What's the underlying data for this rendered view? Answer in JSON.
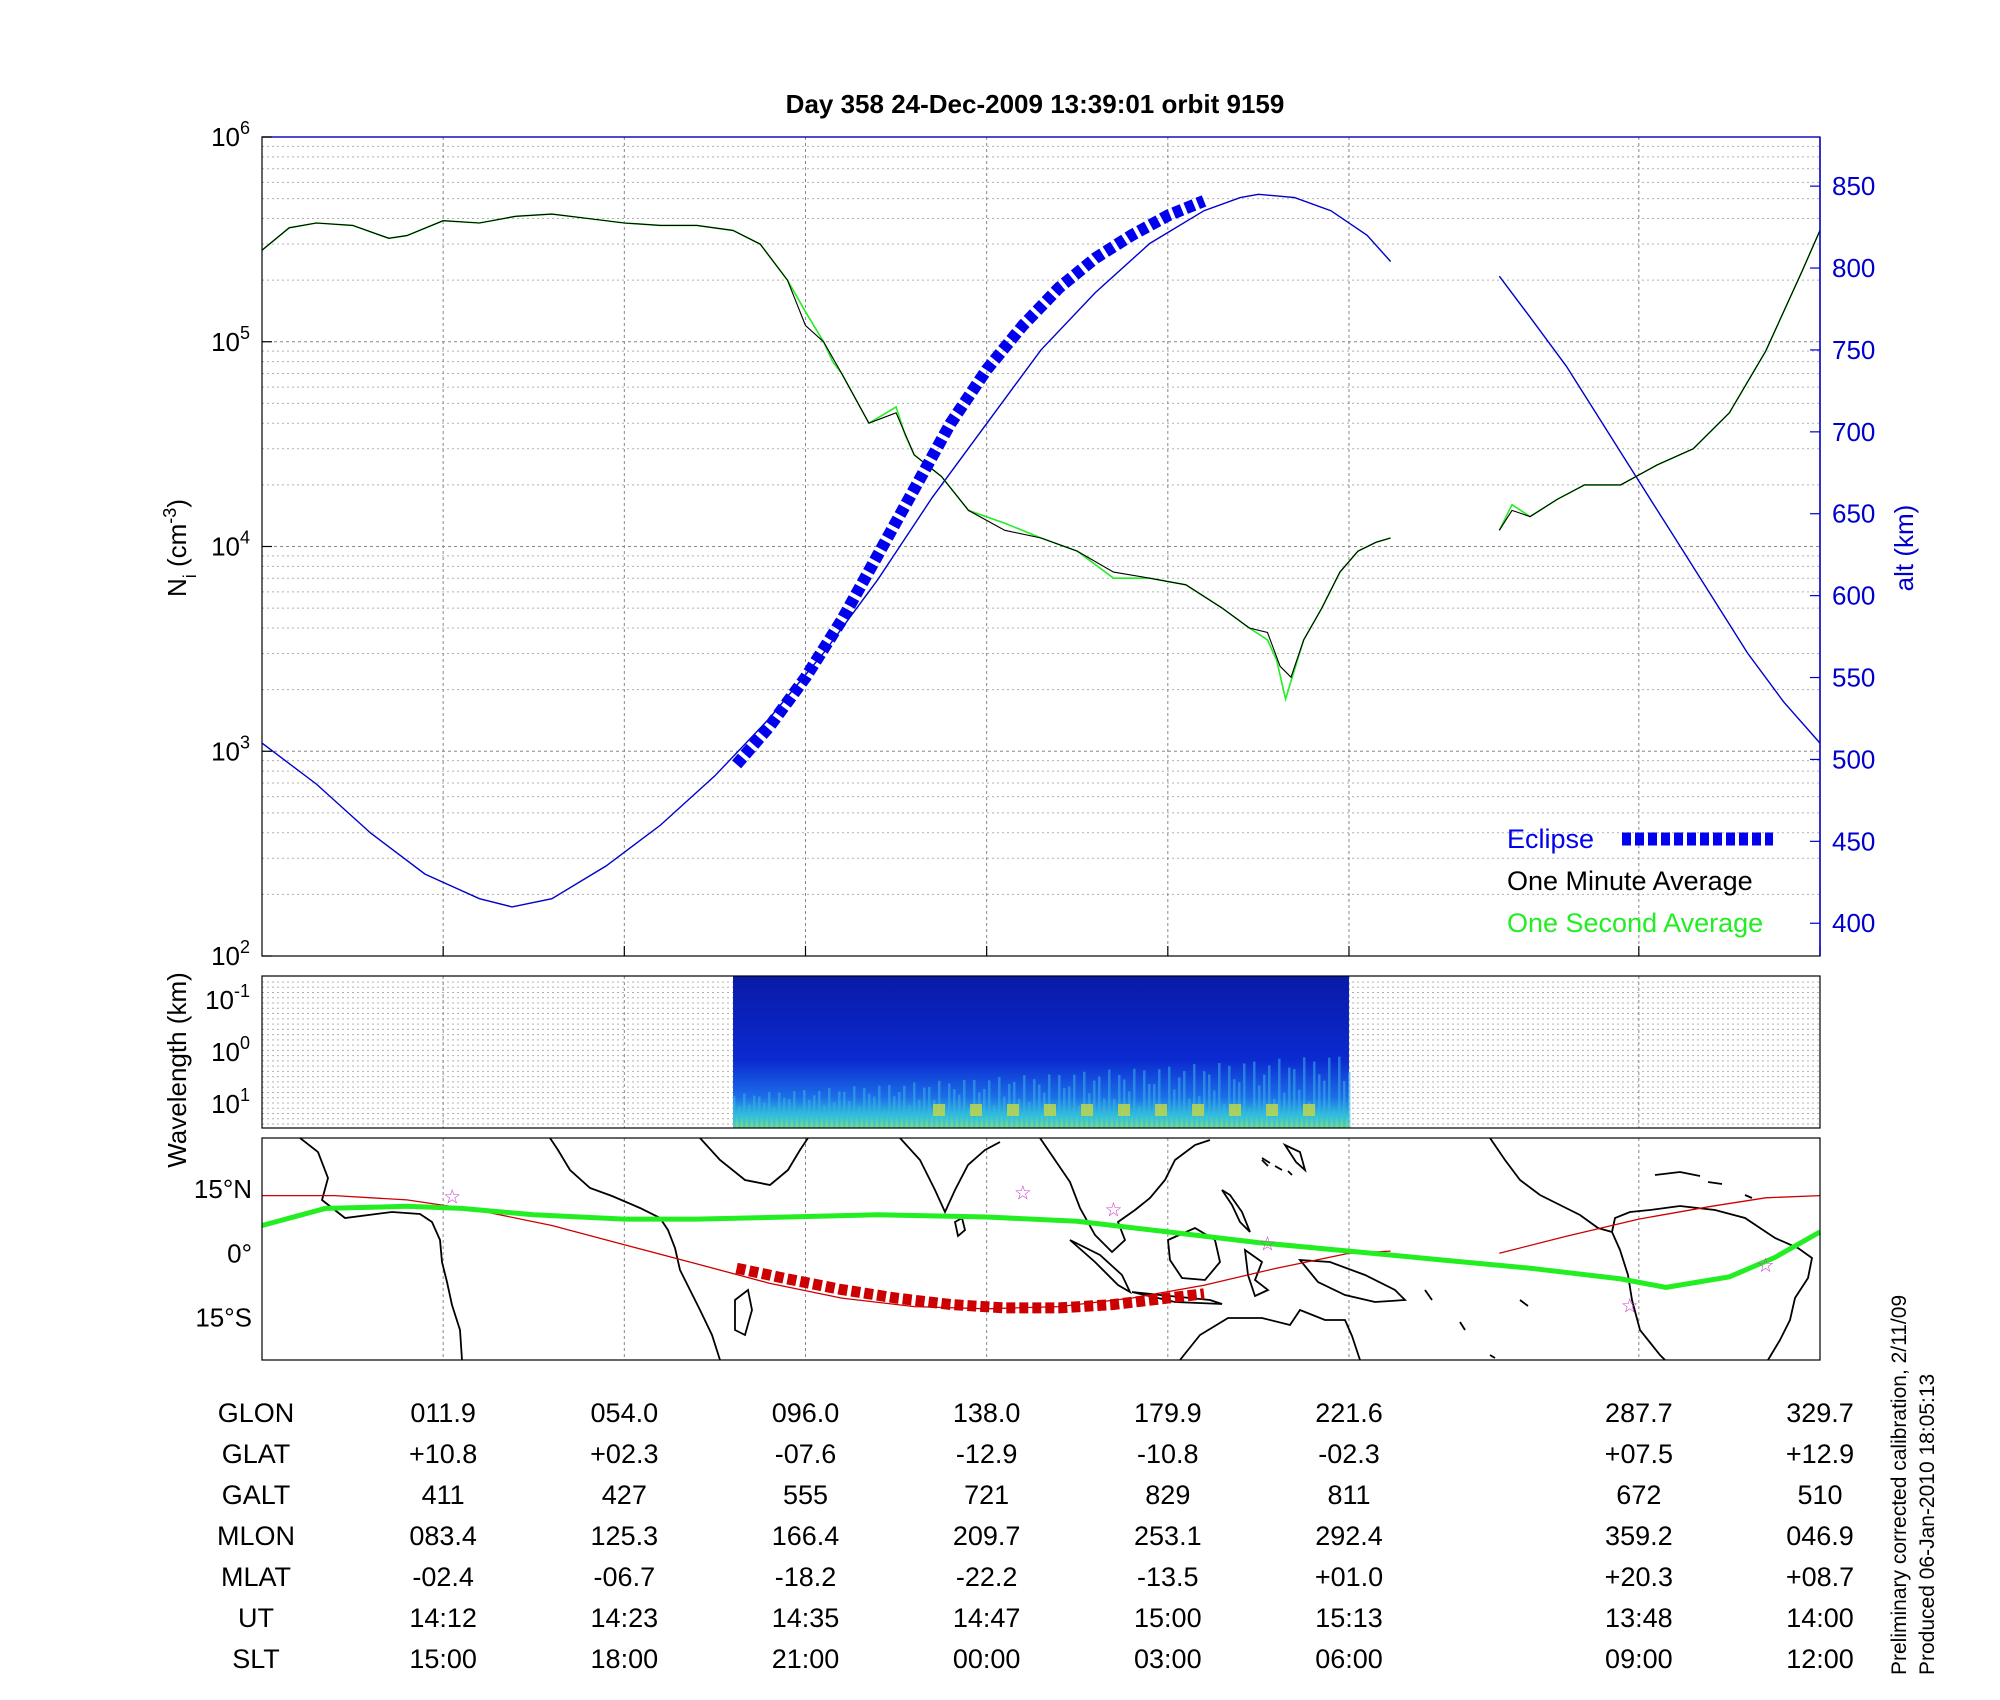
{
  "title": "Day 358  24-Dec-2009 13:39:01   orbit 9159",
  "colors": {
    "density_minute": "#000000",
    "density_second": "#22ee22",
    "altitude": "#0000cc",
    "eclipse": "#0000ee",
    "map_track": "#cc0000",
    "map_dip_equator": "#22ee22",
    "map_stars": "#cc44cc"
  },
  "chart_data": [
    {
      "type": "line",
      "panel": "density",
      "ylabel_left": "N_i (cm^-3)",
      "ylabel_left_main": "N",
      "ylabel_left_sub": "i",
      "ylabel_left_unit_open": " (cm",
      "ylabel_left_unit_exp": "-3",
      "ylabel_left_unit_close": ")",
      "ylabel_right": "alt (km)",
      "yscale_left": "log",
      "ylim_left": [
        100,
        1000000
      ],
      "yticks_left": [
        {
          "base": "10",
          "exp": "2",
          "value": 100
        },
        {
          "base": "10",
          "exp": "3",
          "value": 1000
        },
        {
          "base": "10",
          "exp": "4",
          "value": 10000
        },
        {
          "base": "10",
          "exp": "5",
          "value": 100000
        },
        {
          "base": "10",
          "exp": "6",
          "value": 1000000
        }
      ],
      "ylim_right": [
        380,
        880
      ],
      "yticks_right": [
        "400",
        "450",
        "500",
        "550",
        "600",
        "650",
        "700",
        "750",
        "800",
        "850"
      ],
      "xlim": [
        0,
        8.6
      ],
      "x_tick_positions": [
        1,
        2,
        3,
        4,
        5,
        6,
        7.6,
        8.6
      ],
      "grid": true,
      "legend_position": "bottom-right",
      "legend": [
        "Eclipse",
        "One Minute Average",
        "One Second Average"
      ],
      "series": [
        {
          "name": "One Minute Average",
          "segments": [
            {
              "x": [
                0,
                0.15,
                0.3,
                0.5,
                0.7,
                0.8,
                1.0,
                1.2,
                1.4,
                1.6,
                1.8,
                2.0,
                2.2,
                2.4,
                2.6,
                2.75,
                2.9,
                3.0,
                3.1,
                3.2,
                3.35,
                3.5,
                3.6,
                3.75,
                3.9,
                4.1,
                4.3,
                4.5,
                4.7,
                4.9,
                5.1,
                5.3,
                5.45,
                5.55,
                5.62,
                5.68,
                5.75,
                5.85,
                5.95,
                6.05,
                6.15,
                6.23
              ],
              "y": [
                280000,
                360000,
                380000,
                370000,
                320000,
                330000,
                390000,
                380000,
                410000,
                420000,
                400000,
                380000,
                370000,
                370000,
                350000,
                300000,
                200000,
                120000,
                100000,
                70000,
                40000,
                45000,
                28000,
                22000,
                15000,
                12000,
                11000,
                9500,
                7500,
                7000,
                6500,
                5000,
                4000,
                3800,
                2600,
                2300,
                3500,
                5000,
                7500,
                9500,
                10500,
                11000
              ]
            },
            {
              "x": [
                6.83,
                6.9,
                7.0,
                7.15,
                7.3,
                7.5,
                7.7,
                7.9,
                8.1,
                8.3,
                8.5,
                8.6
              ],
              "y": [
                12000,
                15000,
                14000,
                17000,
                20000,
                20000,
                25000,
                30000,
                45000,
                90000,
                220000,
                350000
              ]
            }
          ]
        },
        {
          "name": "One Second Average",
          "segments": [
            {
              "x": [
                0,
                0.15,
                0.3,
                0.5,
                0.7,
                0.8,
                1.0,
                1.2,
                1.4,
                1.6,
                1.8,
                2.0,
                2.2,
                2.4,
                2.6,
                2.75,
                2.9,
                3.0,
                3.1,
                3.15,
                3.2,
                3.35,
                3.5,
                3.55,
                3.6,
                3.75,
                3.9,
                4.1,
                4.3,
                4.5,
                4.7,
                4.9,
                5.1,
                5.3,
                5.45,
                5.55,
                5.6,
                5.65,
                5.68,
                5.75,
                5.85,
                5.95,
                6.05,
                6.15,
                6.23
              ],
              "y": [
                280000,
                360000,
                380000,
                370000,
                320000,
                330000,
                390000,
                380000,
                410000,
                420000,
                400000,
                380000,
                370000,
                370000,
                350000,
                300000,
                200000,
                140000,
                100000,
                80000,
                70000,
                40000,
                48000,
                35000,
                28000,
                22000,
                15000,
                13000,
                11000,
                9500,
                7000,
                7000,
                6500,
                5000,
                4000,
                3500,
                2800,
                1800,
                2200,
                3500,
                5000,
                7500,
                9500,
                10500,
                11000
              ]
            },
            {
              "x": [
                6.83,
                6.9,
                7.0,
                7.15,
                7.3,
                7.5,
                7.7,
                7.9,
                8.1,
                8.3,
                8.5,
                8.6
              ],
              "y": [
                12000,
                16000,
                14000,
                17000,
                20000,
                20000,
                25000,
                30000,
                45000,
                90000,
                220000,
                350000
              ]
            }
          ]
        },
        {
          "name": "alt (km)",
          "axis": "right",
          "segments": [
            {
              "x": [
                0,
                0.3,
                0.6,
                0.9,
                1.2,
                1.38,
                1.6,
                1.9,
                2.2,
                2.5,
                2.8,
                3.1,
                3.4,
                3.7,
                4.0,
                4.3,
                4.6,
                4.9,
                5.2,
                5.4,
                5.5,
                5.7,
                5.9,
                6.1,
                6.23
              ],
              "y": [
                510,
                485,
                455,
                430,
                415,
                410,
                415,
                435,
                460,
                490,
                525,
                565,
                610,
                660,
                705,
                750,
                785,
                815,
                835,
                843,
                845,
                843,
                835,
                820,
                804
              ]
            },
            {
              "x": [
                6.83,
                7.0,
                7.2,
                7.4,
                7.6,
                7.8,
                8.0,
                8.2,
                8.4,
                8.6
              ],
              "y": [
                795,
                770,
                740,
                705,
                670,
                635,
                600,
                565,
                535,
                510
              ]
            }
          ]
        },
        {
          "name": "Eclipse",
          "axis": "right",
          "x": [
            2.62,
            2.8,
            3.0,
            3.2,
            3.4,
            3.6,
            3.8,
            4.0,
            4.2,
            4.4,
            4.6,
            4.8,
            5.0,
            5.2
          ],
          "y": [
            497,
            520,
            550,
            585,
            625,
            665,
            705,
            738,
            765,
            788,
            806,
            820,
            832,
            841
          ]
        }
      ]
    },
    {
      "type": "heatmap",
      "panel": "wavelength",
      "ylabel": "Wavelength (km)",
      "yticks": [
        {
          "base": "10",
          "exp": "-1"
        },
        {
          "base": "10",
          "exp": "0"
        },
        {
          "base": "10",
          "exp": "1"
        }
      ],
      "xlim": [
        0,
        8.6
      ],
      "data_range": [
        2.6,
        6.0
      ],
      "grid": true
    },
    {
      "type": "line",
      "panel": "map",
      "yticks": [
        "15°N",
        "0°",
        "15°S"
      ],
      "ylim": [
        -25,
        27
      ],
      "xlim": [
        0,
        8.6
      ],
      "series": [
        {
          "name": "track",
          "segments": [
            {
              "x": [
                0,
                0.4,
                0.8,
                1.2,
                1.6,
                2.0,
                2.4,
                2.8,
                3.2,
                3.6,
                4.0,
                4.4,
                4.8,
                5.2,
                5.6,
                6.0,
                6.23
              ],
              "y": [
                13.5,
                13.5,
                12.5,
                10,
                6.5,
                2,
                -2.5,
                -7,
                -10.5,
                -12.5,
                -13,
                -12.5,
                -10.5,
                -7.5,
                -3.5,
                0,
                0.5
              ]
            },
            {
              "x": [
                6.83,
                7.2,
                7.6,
                8.0,
                8.3,
                8.6
              ],
              "y": [
                0,
                4,
                8,
                11,
                13,
                13.5
              ]
            }
          ]
        },
        {
          "name": "eclipse_track",
          "x": [
            2.62,
            2.9,
            3.2,
            3.5,
            3.8,
            4.1,
            4.4,
            4.7,
            5.0,
            5.2
          ],
          "y": [
            -3.5,
            -6,
            -8.5,
            -10.5,
            -12,
            -12.8,
            -12.8,
            -12,
            -10.5,
            -9.5
          ]
        },
        {
          "name": "dip_equator",
          "x": [
            0,
            0.35,
            0.8,
            1.1,
            1.5,
            2.0,
            2.4,
            2.9,
            3.4,
            4.0,
            4.5,
            5.0,
            5.5,
            6.0,
            6.5,
            7.0,
            7.5,
            7.75,
            8.1,
            8.35,
            8.6
          ],
          "y": [
            6.5,
            10.5,
            11,
            10.5,
            9,
            8,
            8,
            8.5,
            9,
            8.5,
            7.5,
            5,
            2.5,
            0.5,
            -1.5,
            -3.5,
            -6,
            -8,
            -5.5,
            -1,
            5
          ]
        },
        {
          "name": "stars",
          "x": [
            1.05,
            4.2,
            4.7,
            5.55,
            7.55,
            8.3
          ],
          "y": [
            13.5,
            14.5,
            10.5,
            2.5,
            -12,
            -2.5
          ]
        }
      ]
    }
  ],
  "table": {
    "rows": [
      {
        "label": "GLON",
        "values": [
          "011.9",
          "054.0",
          "096.0",
          "138.0",
          "179.9",
          "221.6",
          "287.7",
          "329.7"
        ]
      },
      {
        "label": "GLAT",
        "values": [
          "+10.8",
          "+02.3",
          "-07.6",
          "-12.9",
          "-10.8",
          "-02.3",
          "+07.5",
          "+12.9"
        ]
      },
      {
        "label": "GALT",
        "values": [
          "411",
          "427",
          "555",
          "721",
          "829",
          "811",
          "672",
          "510"
        ]
      },
      {
        "label": "MLON",
        "values": [
          "083.4",
          "125.3",
          "166.4",
          "209.7",
          "253.1",
          "292.4",
          "359.2",
          "046.9"
        ]
      },
      {
        "label": "MLAT",
        "values": [
          "-02.4",
          "-06.7",
          "-18.2",
          "-22.2",
          "-13.5",
          "+01.0",
          "+20.3",
          "+08.7"
        ]
      },
      {
        "label": "UT",
        "values": [
          "14:12",
          "14:23",
          "14:35",
          "14:47",
          "15:00",
          "15:13",
          "13:48",
          "14:00"
        ]
      },
      {
        "label": "SLT",
        "values": [
          "15:00",
          "18:00",
          "21:00",
          "00:00",
          "03:00",
          "06:00",
          "09:00",
          "12:00"
        ]
      }
    ]
  },
  "notes": [
    "Preliminary corrected calibration, 2/11/09",
    "Produced 06-Jan-2010 18:05:13"
  ]
}
